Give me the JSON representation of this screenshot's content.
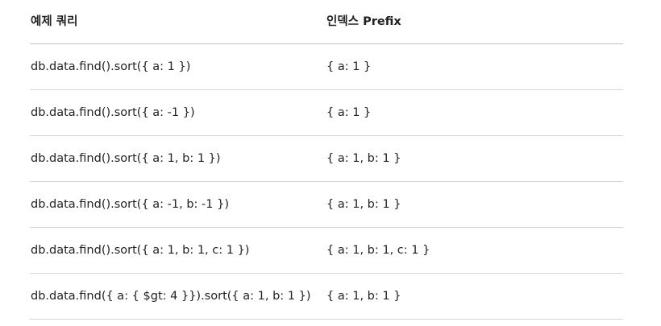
{
  "table": {
    "headers": [
      "예제 쿼리",
      "인덱스 Prefix"
    ],
    "rows": [
      [
        "db.data.find().sort({ a: 1 })",
        "{ a: 1 }"
      ],
      [
        "db.data.find().sort({ a: -1 })",
        "{ a: 1 }"
      ],
      [
        "db.data.find().sort({ a: 1, b: 1 })",
        "{ a: 1, b: 1 }"
      ],
      [
        "db.data.find().sort({ a: -1, b: -1 })",
        "{ a: 1, b: 1 }"
      ],
      [
        "db.data.find().sort({ a: 1, b: 1, c: 1 })",
        "{ a: 1, b: 1, c: 1 }"
      ],
      [
        "db.data.find({ a: { $gt: 4 }}).sort({ a: 1, b: 1 })",
        "{ a: 1, b: 1 }"
      ]
    ]
  }
}
